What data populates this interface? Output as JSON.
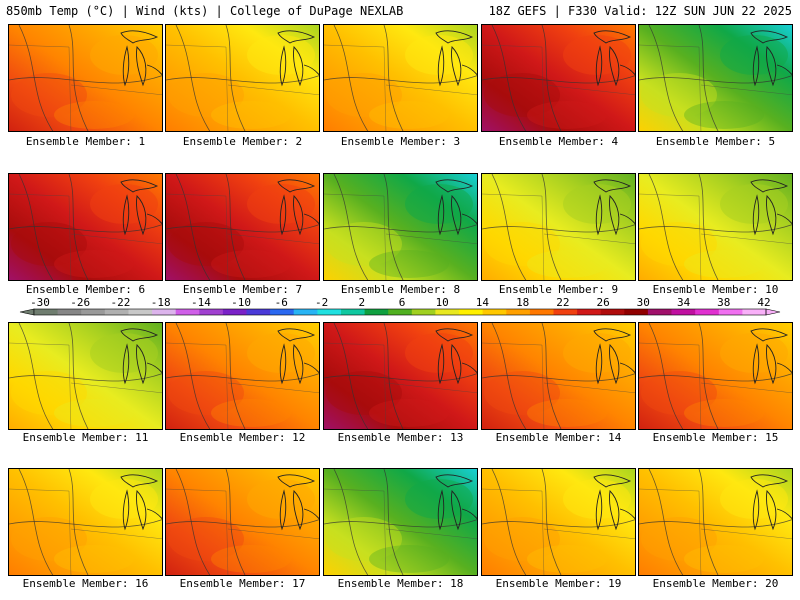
{
  "header": {
    "left": "850mb Temp (°C) | Wind (kts) | College of DuPage NEXLAB",
    "right": "18Z GEFS | F330 Valid: 12Z SUN JUN 22 2025"
  },
  "caption_prefix": "Ensemble Member: ",
  "members": [
    {
      "n": "1",
      "style": "warm"
    },
    {
      "n": "2",
      "style": "mixed"
    },
    {
      "n": "3",
      "style": "mixed"
    },
    {
      "n": "4",
      "style": "hot"
    },
    {
      "n": "5",
      "style": "cool"
    },
    {
      "n": "6",
      "style": "hot"
    },
    {
      "n": "7",
      "style": "hot"
    },
    {
      "n": "8",
      "style": "cool"
    },
    {
      "n": "9",
      "style": "mild"
    },
    {
      "n": "10",
      "style": "mild"
    },
    {
      "n": "11",
      "style": "mild"
    },
    {
      "n": "12",
      "style": "warm"
    },
    {
      "n": "13",
      "style": "hot"
    },
    {
      "n": "14",
      "style": "warm"
    },
    {
      "n": "15",
      "style": "warm"
    },
    {
      "n": "16",
      "style": "mixed"
    },
    {
      "n": "17",
      "style": "warm"
    },
    {
      "n": "18",
      "style": "cool"
    },
    {
      "n": "19",
      "style": "mixed"
    },
    {
      "n": "20",
      "style": "mixed"
    }
  ],
  "colorbar": {
    "labels": [
      "-30",
      "-26",
      "-22",
      "-18",
      "-14",
      "-10",
      "-6",
      "-2",
      "2",
      "6",
      "10",
      "14",
      "18",
      "22",
      "26",
      "30",
      "34",
      "38",
      "42"
    ],
    "colors": [
      "#6f7d6f",
      "#868686",
      "#9a9a9a",
      "#b0b0b0",
      "#c8c8c8",
      "#dcb4ec",
      "#cf5fe8",
      "#a040d0",
      "#7a22c8",
      "#4a3ad8",
      "#2a68f0",
      "#28b4f4",
      "#20e0e0",
      "#10c8a0",
      "#10a040",
      "#50b020",
      "#a0d020",
      "#e8e820",
      "#fff000",
      "#ffc800",
      "#ffa000",
      "#ff7800",
      "#f04010",
      "#d01818",
      "#b00c0c",
      "#900000",
      "#a0106a",
      "#c010a0",
      "#e030d0",
      "#f070f0",
      "#f8b0f8"
    ]
  }
}
